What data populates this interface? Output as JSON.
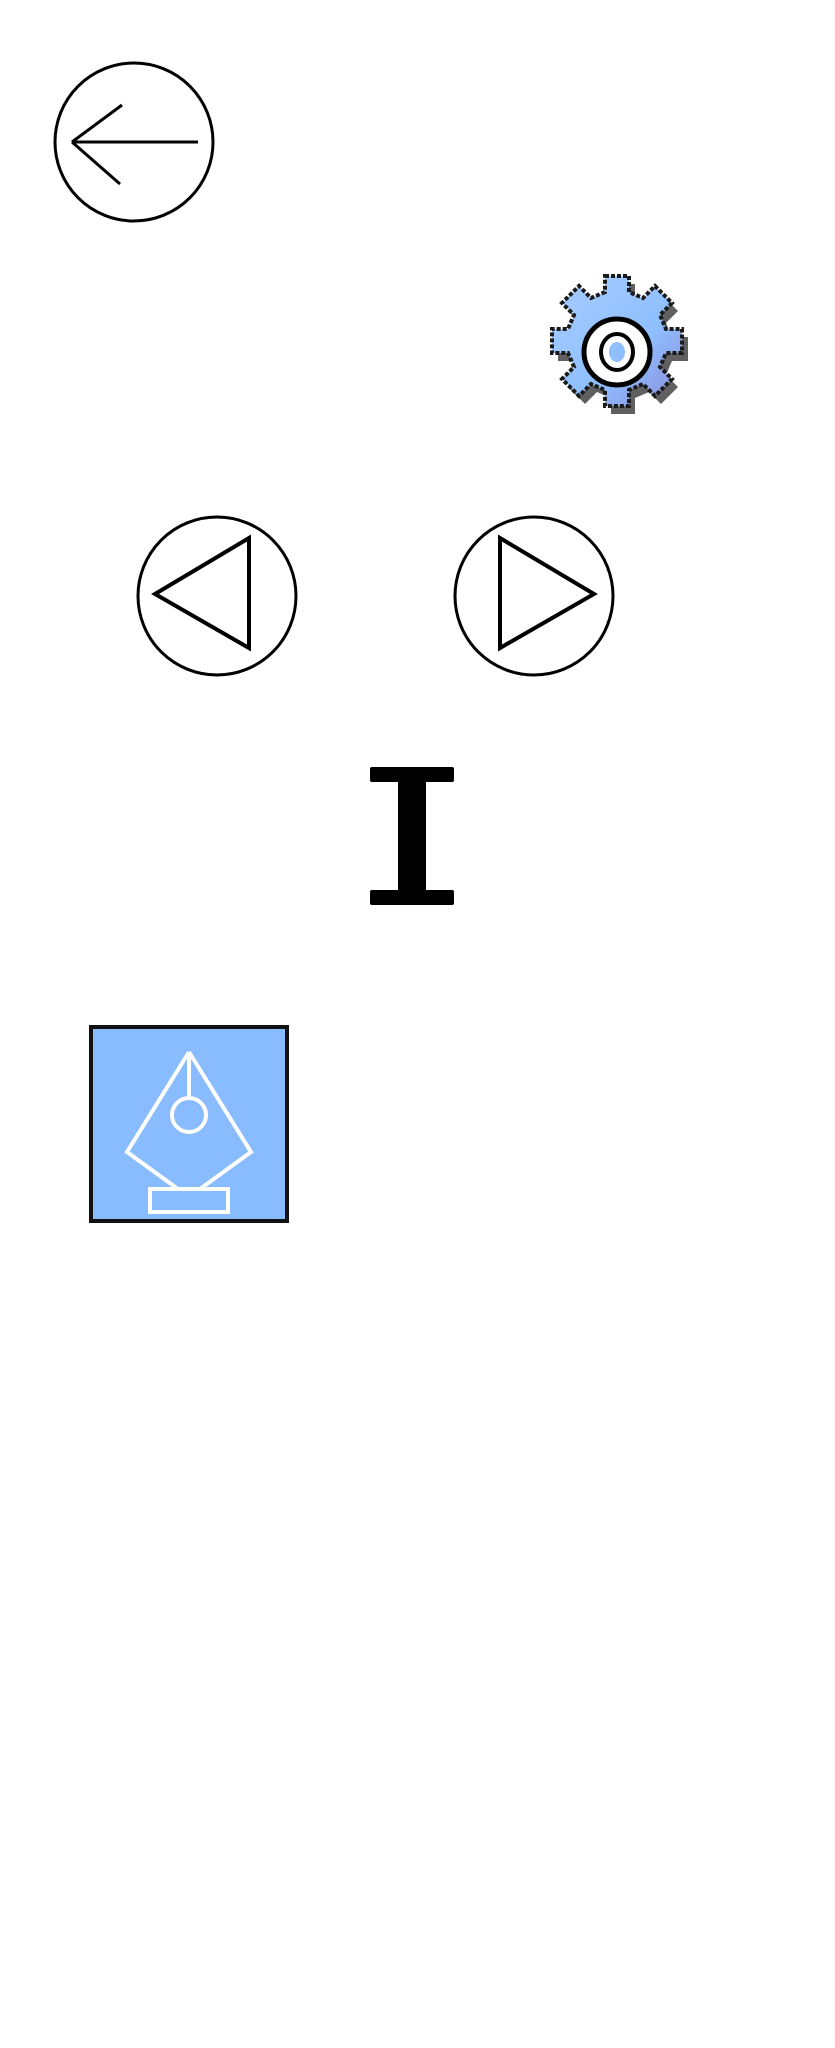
{
  "icons": {
    "back": "arrow-left-icon",
    "settings": "gear-icon",
    "previous": "triangle-left-icon",
    "next": "triangle-right-icon",
    "text_cursor": "i-beam-icon",
    "pen_tool": "pen-nib-icon"
  },
  "colors": {
    "stroke": "#000000",
    "gear_fill": "#8fbfff",
    "gear_shadow": "#3a3a3a",
    "pen_tile_bg": "#89bbff",
    "pen_tile_border": "#111111",
    "pen_glyph": "#ffffff"
  }
}
